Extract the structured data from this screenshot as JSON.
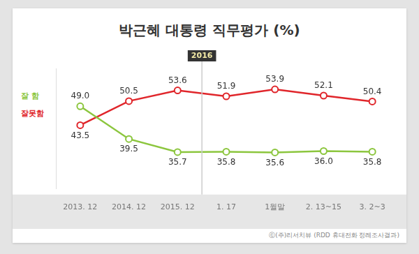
{
  "chart_data": {
    "type": "line",
    "title": "박근혜 대통령 직무평가 (%)",
    "categories": [
      "2013. 12",
      "2014. 12",
      "2015. 12",
      "1. 17",
      "1월말",
      "2. 13~15",
      "3. 2~3"
    ],
    "series": [
      {
        "name": "잘 함",
        "color": "#8cc63e",
        "marker": "circle",
        "values": [
          49.0,
          39.5,
          35.7,
          35.8,
          35.6,
          36.0,
          35.8
        ],
        "value_labels": [
          "49.0",
          "39.5",
          "35.7",
          "35.8",
          "35.6",
          "36.0",
          "35.8"
        ]
      },
      {
        "name": "잘못함",
        "color": "#e0262b",
        "marker": "circle",
        "values": [
          43.5,
          50.5,
          53.6,
          51.9,
          53.9,
          52.1,
          50.4
        ],
        "value_labels": [
          "43.5",
          "50.5",
          "53.6",
          "51.9",
          "53.9",
          "52.1",
          "50.4"
        ]
      }
    ],
    "ylim": [
      25,
      60
    ],
    "tick_labels": "x",
    "grid": false,
    "legend": "left",
    "data_labels": true,
    "annotations": [
      {
        "text": "2016",
        "x": "1. 17"
      }
    ],
    "source": "ⓒ(주)리서치뷰 (RDD 휴대전화 정례조사결과)"
  }
}
